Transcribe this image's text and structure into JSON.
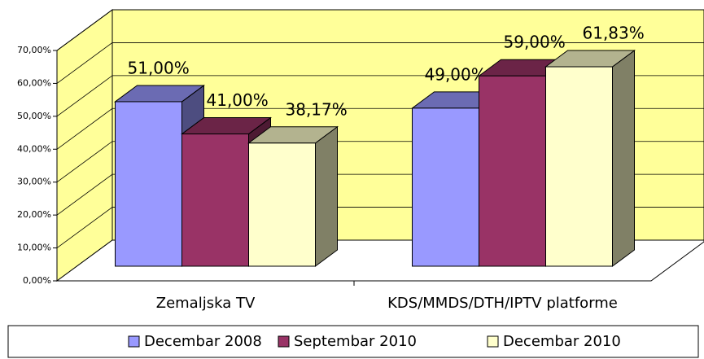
{
  "chart_data": {
    "type": "bar3d",
    "categories": [
      "Zemaljska TV",
      "KDS/MMDS/DTH/IPTV platforme"
    ],
    "series": [
      {
        "name": "Decembar 2008",
        "color": "#9999ff",
        "values": [
          51,
          49
        ],
        "value_labels": [
          "51,00%",
          "49,00%"
        ]
      },
      {
        "name": "Septembar 2010",
        "color": "#993366",
        "values": [
          41,
          59
        ],
        "value_labels": [
          "41,00%",
          "59,00%"
        ]
      },
      {
        "name": "Decembar 2010",
        "color": "#ffffcc",
        "values": [
          38.17,
          61.83
        ],
        "value_labels": [
          "38,17%",
          "61,83%"
        ]
      }
    ],
    "ylim": [
      0,
      70
    ],
    "yticks": [
      {
        "value": 0,
        "label": "0,00%"
      },
      {
        "value": 10,
        "label": "10,00%"
      },
      {
        "value": 20,
        "label": "20,00%"
      },
      {
        "value": 30,
        "label": "30,00%"
      },
      {
        "value": 40,
        "label": "40,00%"
      },
      {
        "value": 50,
        "label": "50,00%"
      },
      {
        "value": 60,
        "label": "60,00%"
      },
      {
        "value": 70,
        "label": "70,00%"
      }
    ],
    "grid": true,
    "legend": "bottom",
    "wall_color": "#ffff99"
  }
}
